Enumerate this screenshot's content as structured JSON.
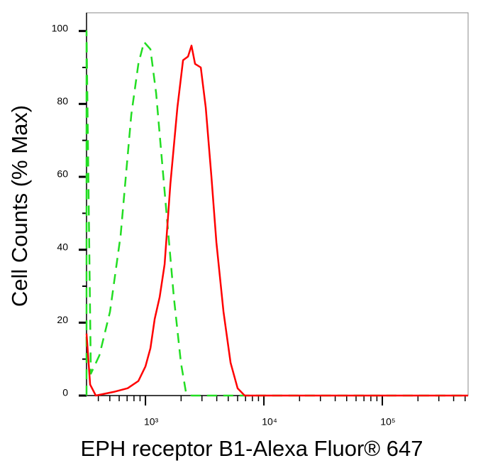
{
  "chart_data": {
    "type": "line",
    "x_label": "EPH receptor B1-Alexa Fluor® 647",
    "y_label": "Cell Counts (% Max)",
    "xscale": "log",
    "xlim": [
      318,
      530000
    ],
    "ylim": [
      0,
      105
    ],
    "xticks": [
      {
        "value": 1000,
        "label": "10³"
      },
      {
        "value": 10000,
        "label": "10⁴"
      },
      {
        "value": 100000,
        "label": "10⁵"
      }
    ],
    "xminorticks": [
      400,
      500,
      600,
      700,
      800,
      900,
      2000,
      3000,
      4000,
      5000,
      6000,
      7000,
      8000,
      9000,
      20000,
      30000,
      40000,
      50000,
      60000,
      70000,
      80000,
      90000,
      200000,
      300000,
      400000,
      500000
    ],
    "yticks": [
      0,
      20,
      40,
      60,
      80,
      100
    ],
    "yminorticks": [
      10,
      30,
      50,
      70,
      90
    ],
    "series": [
      {
        "color": "#22dd22",
        "linestyle": "dashed",
        "x": [
          318,
          318,
          346,
          408,
          502,
          617,
          759,
          871,
          973,
          1101,
          1230,
          1452,
          1737,
          1992,
          2194,
          2449,
          530000
        ],
        "values": [
          0,
          100,
          6,
          11,
          23,
          44,
          77,
          91,
          97,
          95,
          83,
          56,
          27,
          9,
          1,
          0,
          0
        ]
      },
      {
        "color": "#ff0000",
        "linestyle": "solid",
        "x": [
          318,
          341,
          381,
          538,
          708,
          871,
          1000,
          1101,
          1197,
          1318,
          1452,
          1622,
          1859,
          2077,
          2288,
          2449,
          2624,
          2931,
          3229,
          3605,
          3969,
          4556,
          5232,
          5998,
          6889,
          530000
        ],
        "values": [
          17,
          3,
          0,
          1,
          2,
          4,
          8,
          13,
          21,
          27,
          36,
          58,
          79,
          92,
          93,
          96,
          91,
          90,
          79,
          60,
          42,
          23,
          9,
          2,
          0,
          0
        ]
      }
    ]
  }
}
